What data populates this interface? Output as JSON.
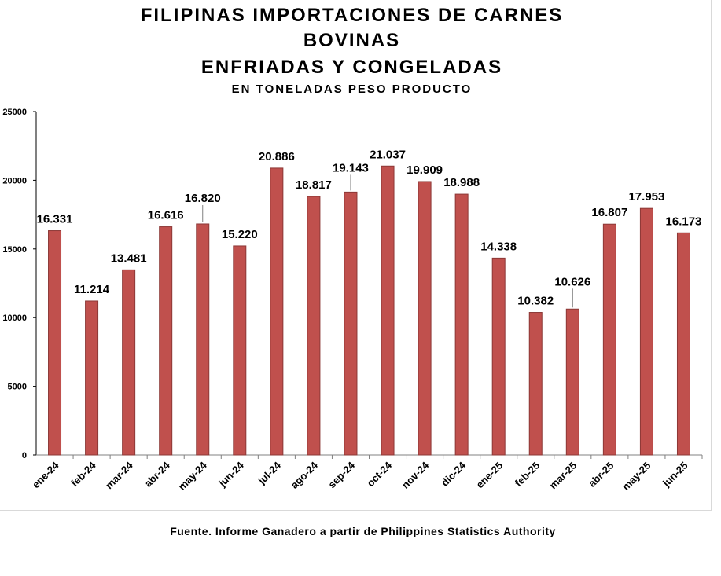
{
  "title_lines": [
    "FILIPINAS IMPORTACIONES DE CARNES",
    "BOVINAS",
    "ENFRIADAS Y CONGELADAS"
  ],
  "subtitle": "EN TONELADAS PESO PRODUCTO",
  "source": "Fuente. Informe Ganadero a partir de Philippines Statistics Authority",
  "colors": {
    "bar": "#c0504d",
    "bar_edge": "#8c3836",
    "axis": "#000000"
  },
  "chart_data": {
    "type": "bar",
    "title": "FILIPINAS IMPORTACIONES DE CARNES BOVINAS ENFRIADAS Y CONGELADAS",
    "subtitle": "EN TONELADAS PESO PRODUCTO",
    "xlabel": "",
    "ylabel": "",
    "ylim": [
      0,
      25000
    ],
    "yticks": [
      0,
      5000,
      10000,
      15000,
      20000,
      25000
    ],
    "ytick_labels": [
      "0",
      "5000",
      "10000",
      "15000",
      "20000",
      "25000"
    ],
    "grid": false,
    "legend": "none",
    "categories": [
      "ene-24",
      "feb-24",
      "mar-24",
      "abr-24",
      "may-24",
      "jun-24",
      "jul-24",
      "ago-24",
      "sep-24",
      "oct-24",
      "nov-24",
      "dic-24",
      "ene-25",
      "feb-25",
      "mar-25",
      "abr-25",
      "may-25",
      "jun-25"
    ],
    "values": [
      16331,
      11214,
      13481,
      16616,
      16820,
      15220,
      20886,
      18817,
      19143,
      21037,
      19909,
      18988,
      14338,
      10382,
      10626,
      16807,
      17953,
      16173
    ],
    "data_labels": [
      "16.331",
      "11.214",
      "13.481",
      "16.616",
      "16.820",
      "15.220",
      "20.886",
      "18.817",
      "19.143",
      "21.037",
      "19.909",
      "18.988",
      "14.338",
      "10.382",
      "10.626",
      "16.807",
      "17.953",
      "16.173"
    ]
  }
}
